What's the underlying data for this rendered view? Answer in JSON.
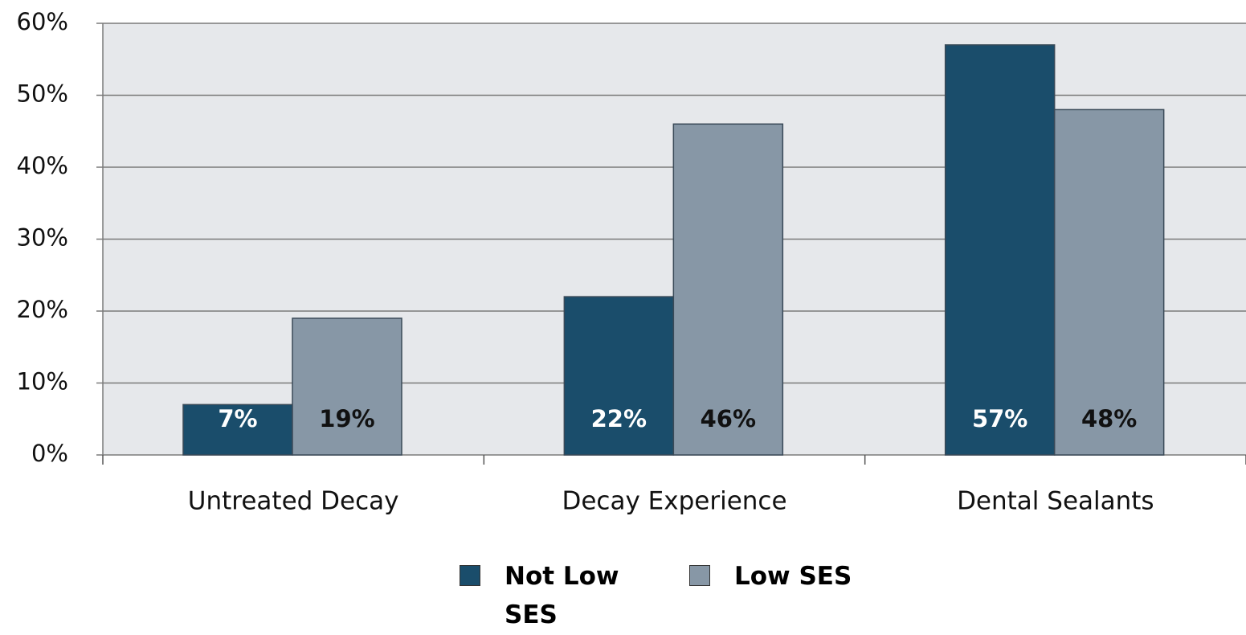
{
  "chart_data": {
    "type": "bar",
    "categories": [
      "Untreated Decay",
      "Decay Experience",
      "Dental Sealants"
    ],
    "series": [
      {
        "name": "Not Low SES",
        "color": "#1a4d6b",
        "values": [
          7,
          22,
          57
        ],
        "value_labels": [
          "7%",
          "22%",
          "57%"
        ]
      },
      {
        "name": "Low SES",
        "color": "#8797a6",
        "values": [
          19,
          46,
          48
        ],
        "value_labels": [
          "19%",
          "46%",
          "48%"
        ]
      }
    ],
    "ylim": [
      0,
      60
    ],
    "yticks": [
      {
        "value": 0,
        "label": "0%"
      },
      {
        "value": 10,
        "label": "10%"
      },
      {
        "value": 20,
        "label": "20%"
      },
      {
        "value": 30,
        "label": "30%"
      },
      {
        "value": 40,
        "label": "40%"
      },
      {
        "value": 50,
        "label": "50%"
      },
      {
        "value": 60,
        "label": "60%"
      }
    ],
    "grid": true
  }
}
